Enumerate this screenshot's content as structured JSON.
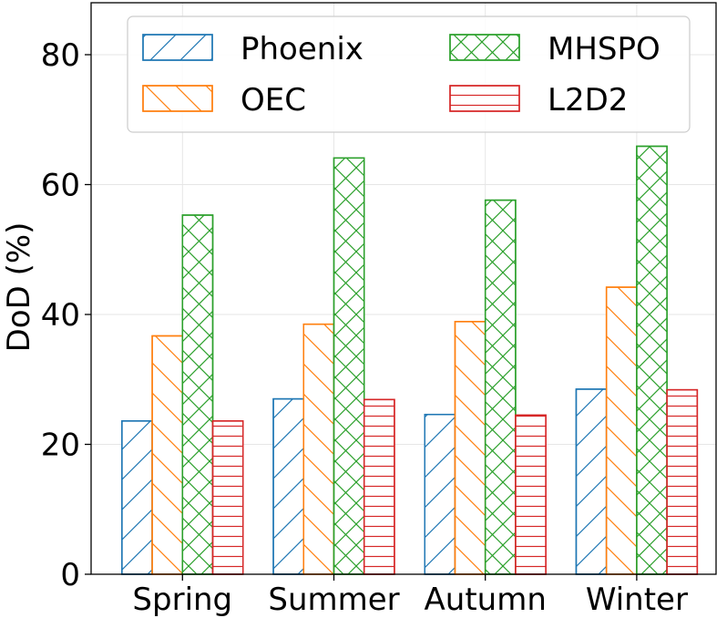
{
  "chart_data": {
    "type": "bar",
    "title": "",
    "xlabel": "",
    "ylabel": "DoD (%)",
    "ylim": [
      0,
      88
    ],
    "yticks": [
      0,
      20,
      40,
      60,
      80
    ],
    "grid": true,
    "legend_position": "top",
    "categories": [
      "Spring",
      "Summer",
      "Autumn",
      "Winter"
    ],
    "series": [
      {
        "name": "Phoenix",
        "values": [
          23.6,
          27.0,
          24.6,
          28.5
        ],
        "color": "#1f77b4",
        "hatch": "/"
      },
      {
        "name": "OEC",
        "values": [
          36.7,
          38.5,
          38.9,
          44.2
        ],
        "color": "#ff7f0e",
        "hatch": "\\"
      },
      {
        "name": "MHSPO",
        "values": [
          55.3,
          64.1,
          57.6,
          65.9
        ],
        "color": "#2ca02c",
        "hatch": "x"
      },
      {
        "name": "L2D2",
        "values": [
          23.6,
          26.9,
          24.5,
          28.4
        ],
        "color": "#d62728",
        "hatch": "-"
      }
    ]
  }
}
